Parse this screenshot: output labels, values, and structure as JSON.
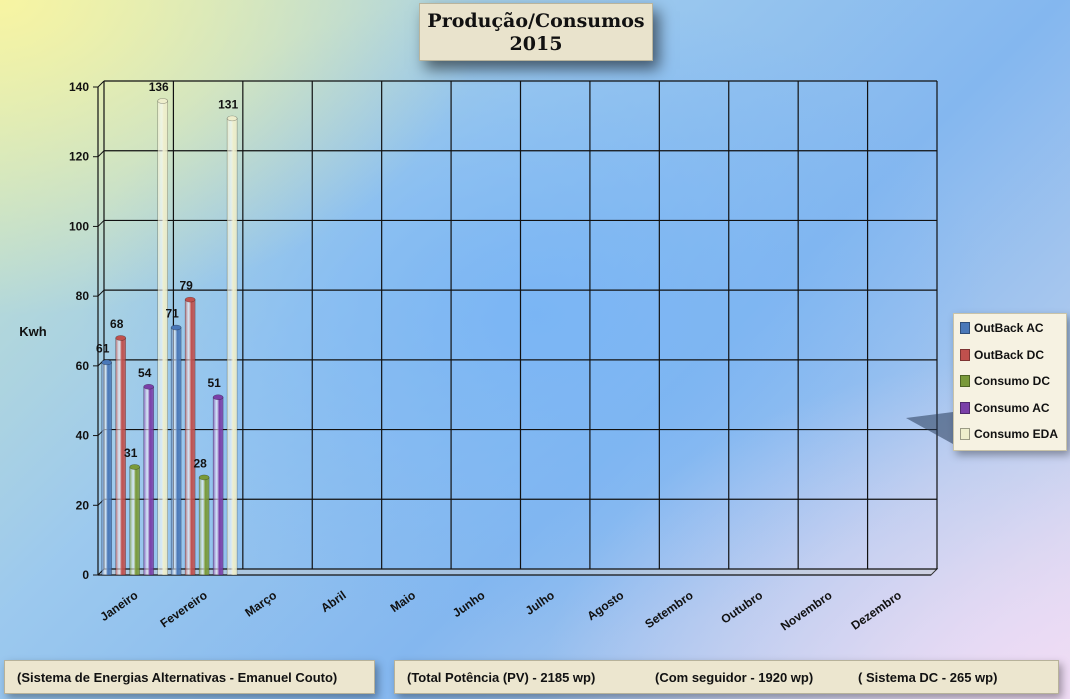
{
  "title": {
    "line1": "Produção/Consumos",
    "line2": "2015"
  },
  "legend": {
    "items": [
      {
        "label": "OutBack AC",
        "color": "#4a78b8"
      },
      {
        "label": "OutBack DC",
        "color": "#c0504d"
      },
      {
        "label": "Consumo DC",
        "color": "#7a9a3a"
      },
      {
        "label": "Consumo AC",
        "color": "#7a3fa8"
      },
      {
        "label": "Consumo EDA",
        "color": "#eeeecc"
      }
    ]
  },
  "footer": {
    "left": "(Sistema de Energias Alternativas - Emanuel Couto)",
    "right_1": "(Total Potência (PV) - 2185 wp)",
    "right_2": "(Com seguidor - 1920 wp)",
    "right_3": "( Sistema DC - 265 wp)"
  },
  "chart_data": {
    "type": "bar",
    "title": "Produção/Consumos 2015",
    "ylabel": "Kwh",
    "xlabel": "",
    "ylim": [
      0,
      140
    ],
    "yticks": [
      0,
      20,
      40,
      60,
      80,
      100,
      120,
      140
    ],
    "grid": true,
    "legend_position": "right",
    "categories": [
      "Janeiro",
      "Fevereiro",
      "Março",
      "Abril",
      "Maio",
      "Junho",
      "Julho",
      "Agosto",
      "Setembro",
      "Outubro",
      "Novembro",
      "Dezembro"
    ],
    "series": [
      {
        "name": "OutBack AC",
        "color": "#4a78b8",
        "values": [
          61,
          71,
          null,
          null,
          null,
          null,
          null,
          null,
          null,
          null,
          null,
          null
        ]
      },
      {
        "name": "OutBack DC",
        "color": "#c0504d",
        "values": [
          68,
          79,
          null,
          null,
          null,
          null,
          null,
          null,
          null,
          null,
          null,
          null
        ]
      },
      {
        "name": "Consumo DC",
        "color": "#7a9a3a",
        "values": [
          31,
          28,
          null,
          null,
          null,
          null,
          null,
          null,
          null,
          null,
          null,
          null
        ]
      },
      {
        "name": "Consumo AC",
        "color": "#7a3fa8",
        "values": [
          54,
          51,
          null,
          null,
          null,
          null,
          null,
          null,
          null,
          null,
          null,
          null
        ]
      },
      {
        "name": "Consumo EDA",
        "color": "#eeeecc",
        "values": [
          136,
          131,
          null,
          null,
          null,
          null,
          null,
          null,
          null,
          null,
          null,
          null
        ]
      }
    ]
  }
}
